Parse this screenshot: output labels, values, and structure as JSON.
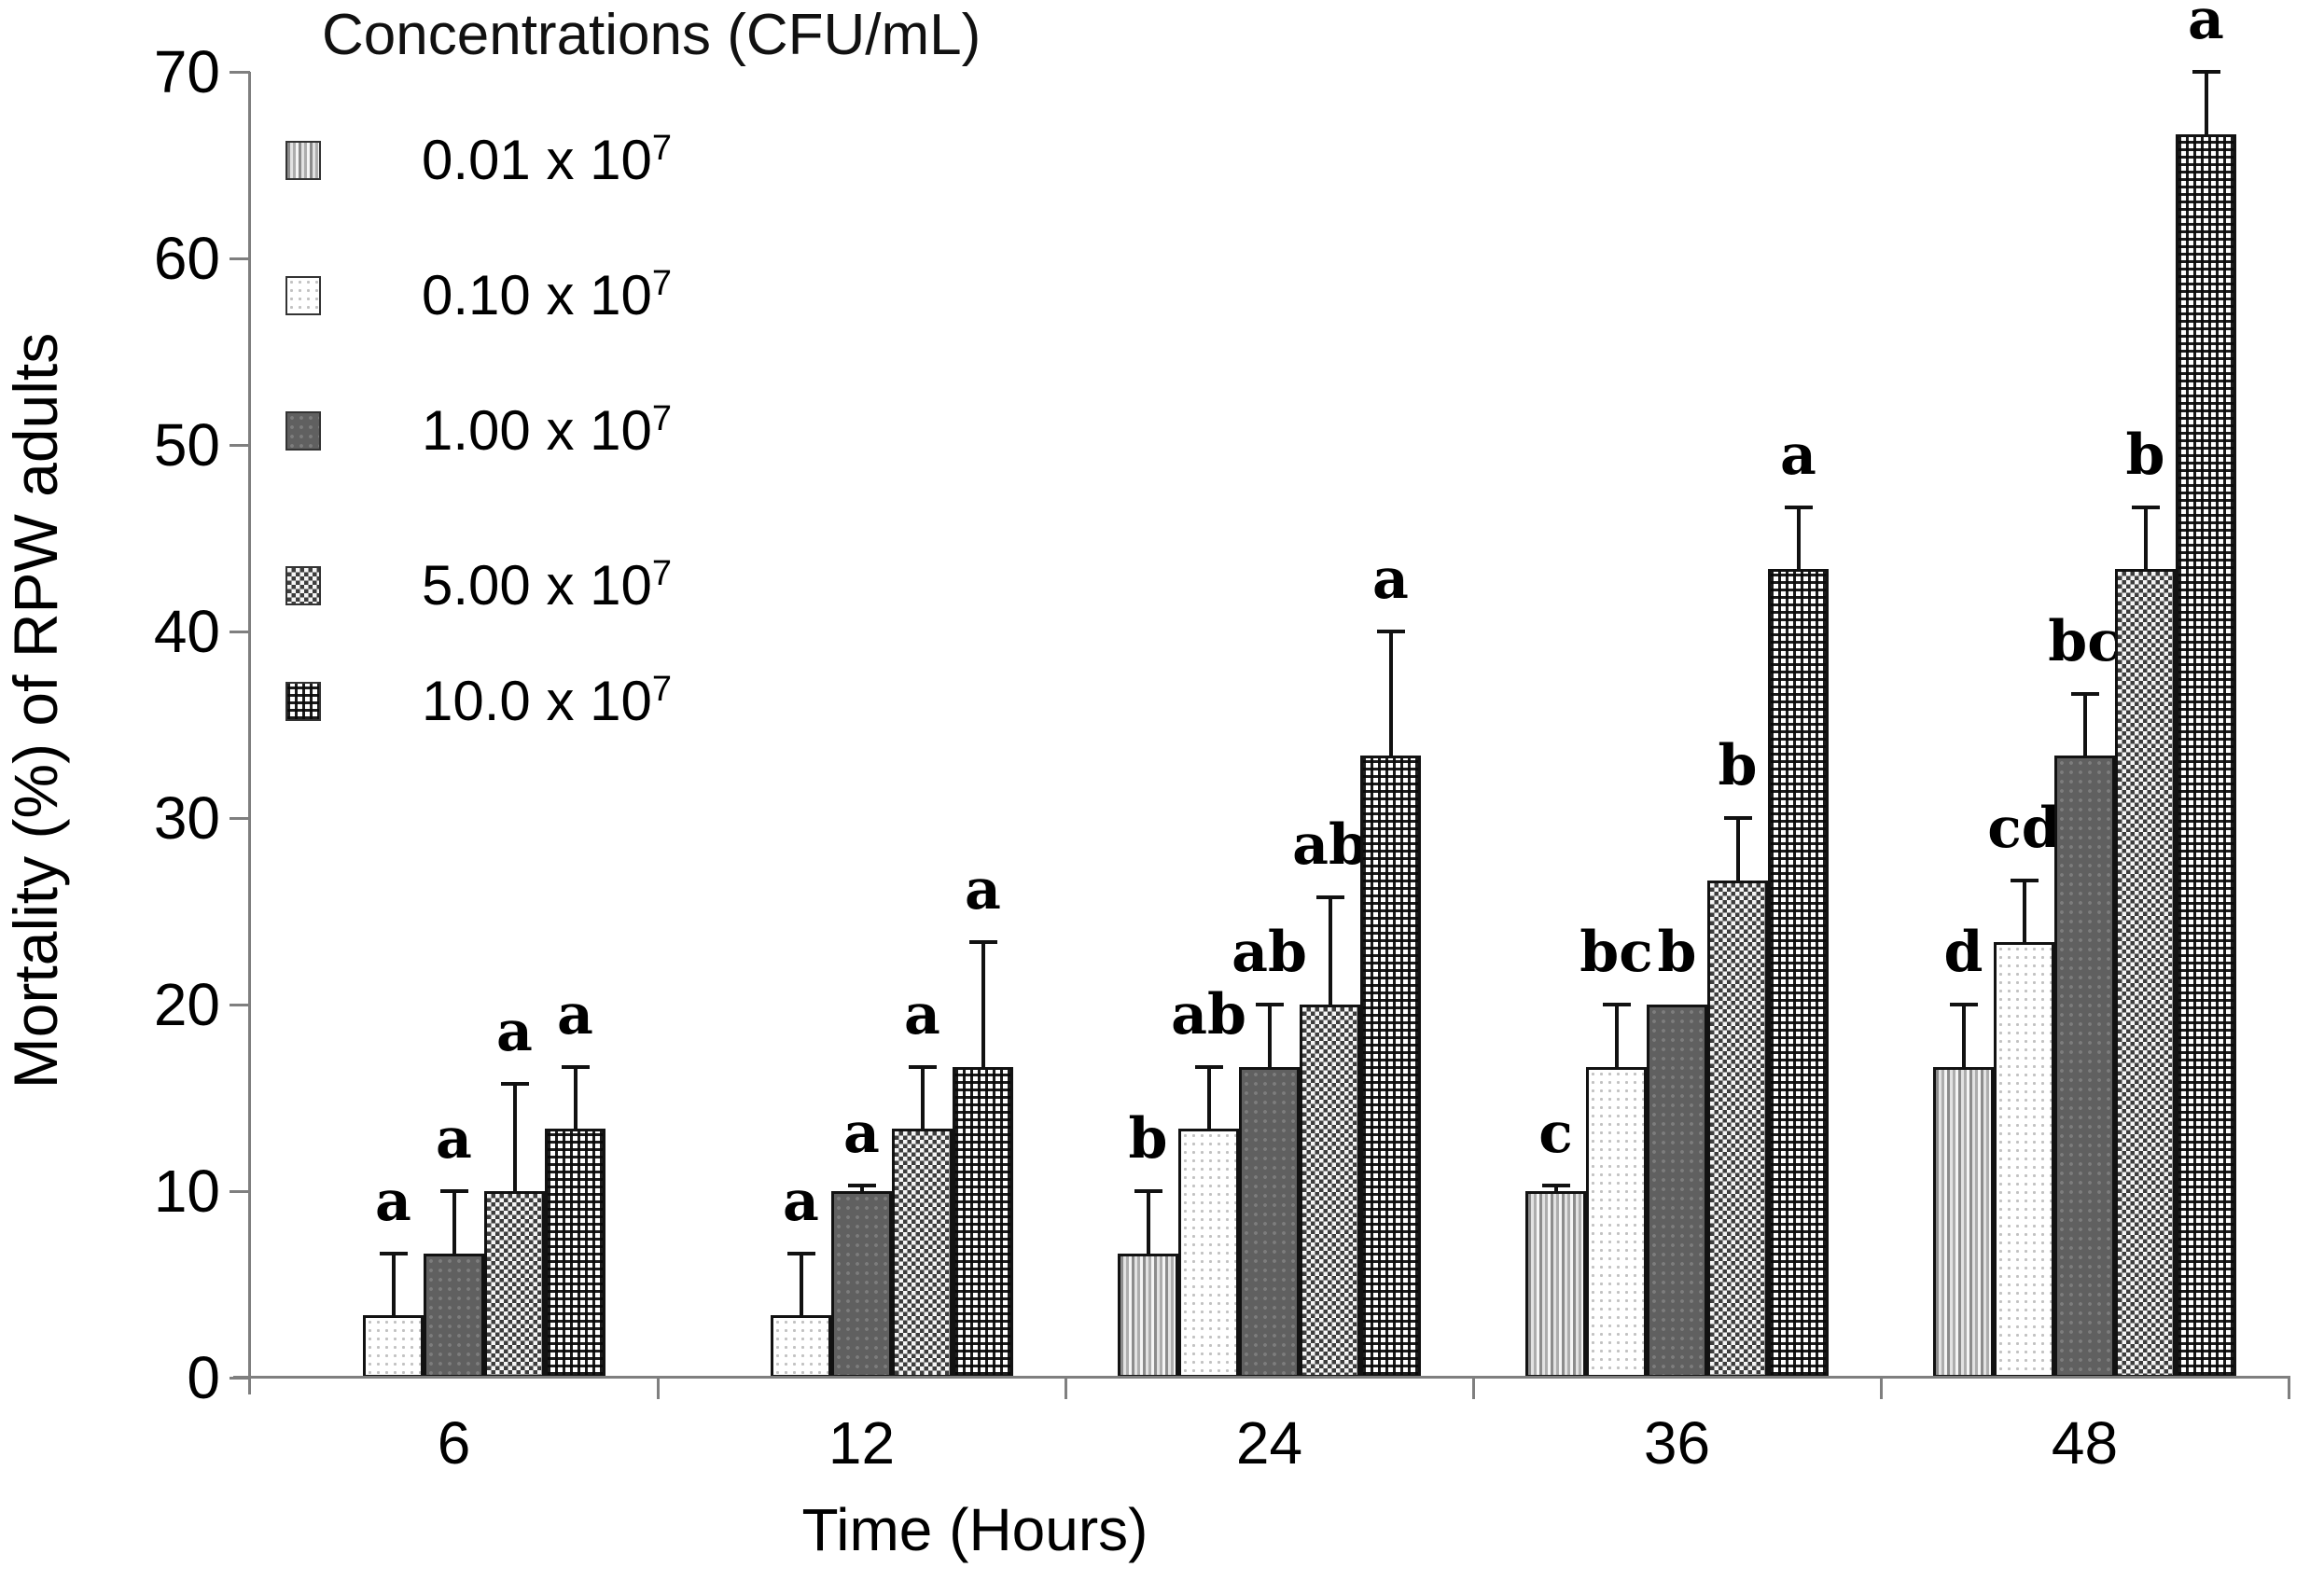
{
  "chart_data": {
    "type": "bar",
    "ylabel": "Mortality (%) of RPW adults",
    "xlabel": "Time (Hours)",
    "legend_title": "Concentrations (CFU/mL)",
    "ylim": [
      0,
      70
    ],
    "yticks": [
      0,
      10,
      20,
      30,
      40,
      50,
      60,
      70
    ],
    "grid": false,
    "legend_position": "upper-left-inside",
    "categories": [
      "6",
      "12",
      "24",
      "36",
      "48"
    ],
    "series": [
      {
        "name": "0.01 x 10^7",
        "legend_base": "0.01 x 10",
        "legend_exp": "7",
        "pattern": "vertical-stripes",
        "values": [
          0,
          0,
          6.67,
          10,
          16.67
        ],
        "errors": [
          0,
          0,
          3.33,
          0.3,
          3.33
        ],
        "letters": [
          "",
          "",
          "b",
          "c",
          "d"
        ]
      },
      {
        "name": "0.10 x 10^7",
        "legend_base": "0.10 x 10",
        "legend_exp": "7",
        "pattern": "light-dots",
        "values": [
          3.33,
          3.33,
          13.33,
          16.67,
          23.33
        ],
        "errors": [
          3.33,
          3.33,
          3.33,
          3.33,
          3.33
        ],
        "letters": [
          "a",
          "a",
          "ab",
          "bc",
          "cd"
        ]
      },
      {
        "name": "1.00 x 10^7",
        "legend_base": "1.00 x 10",
        "legend_exp": "7",
        "pattern": "dark-dots",
        "values": [
          6.67,
          10,
          16.67,
          20,
          33.33
        ],
        "errors": [
          3.33,
          0.3,
          3.33,
          0,
          3.33
        ],
        "letters": [
          "a",
          "a",
          "ab",
          "b",
          "bc"
        ]
      },
      {
        "name": "5.00 x 10^7",
        "legend_base": "5.00 x 10",
        "legend_exp": "7",
        "pattern": "weave",
        "values": [
          10,
          13.33,
          20,
          26.67,
          43.33
        ],
        "errors": [
          5.77,
          3.33,
          5.77,
          3.33,
          3.33
        ],
        "letters": [
          "a",
          "a",
          "ab",
          "b",
          "b"
        ]
      },
      {
        "name": "10.0 x 10^7",
        "legend_base": "10.0 x 10",
        "legend_exp": "7",
        "pattern": "plaid",
        "values": [
          13.33,
          16.67,
          33.33,
          43.33,
          66.67
        ],
        "errors": [
          3.33,
          6.67,
          6.67,
          3.33,
          3.33
        ],
        "letters": [
          "a",
          "a",
          "a",
          "a",
          "a"
        ]
      }
    ]
  }
}
